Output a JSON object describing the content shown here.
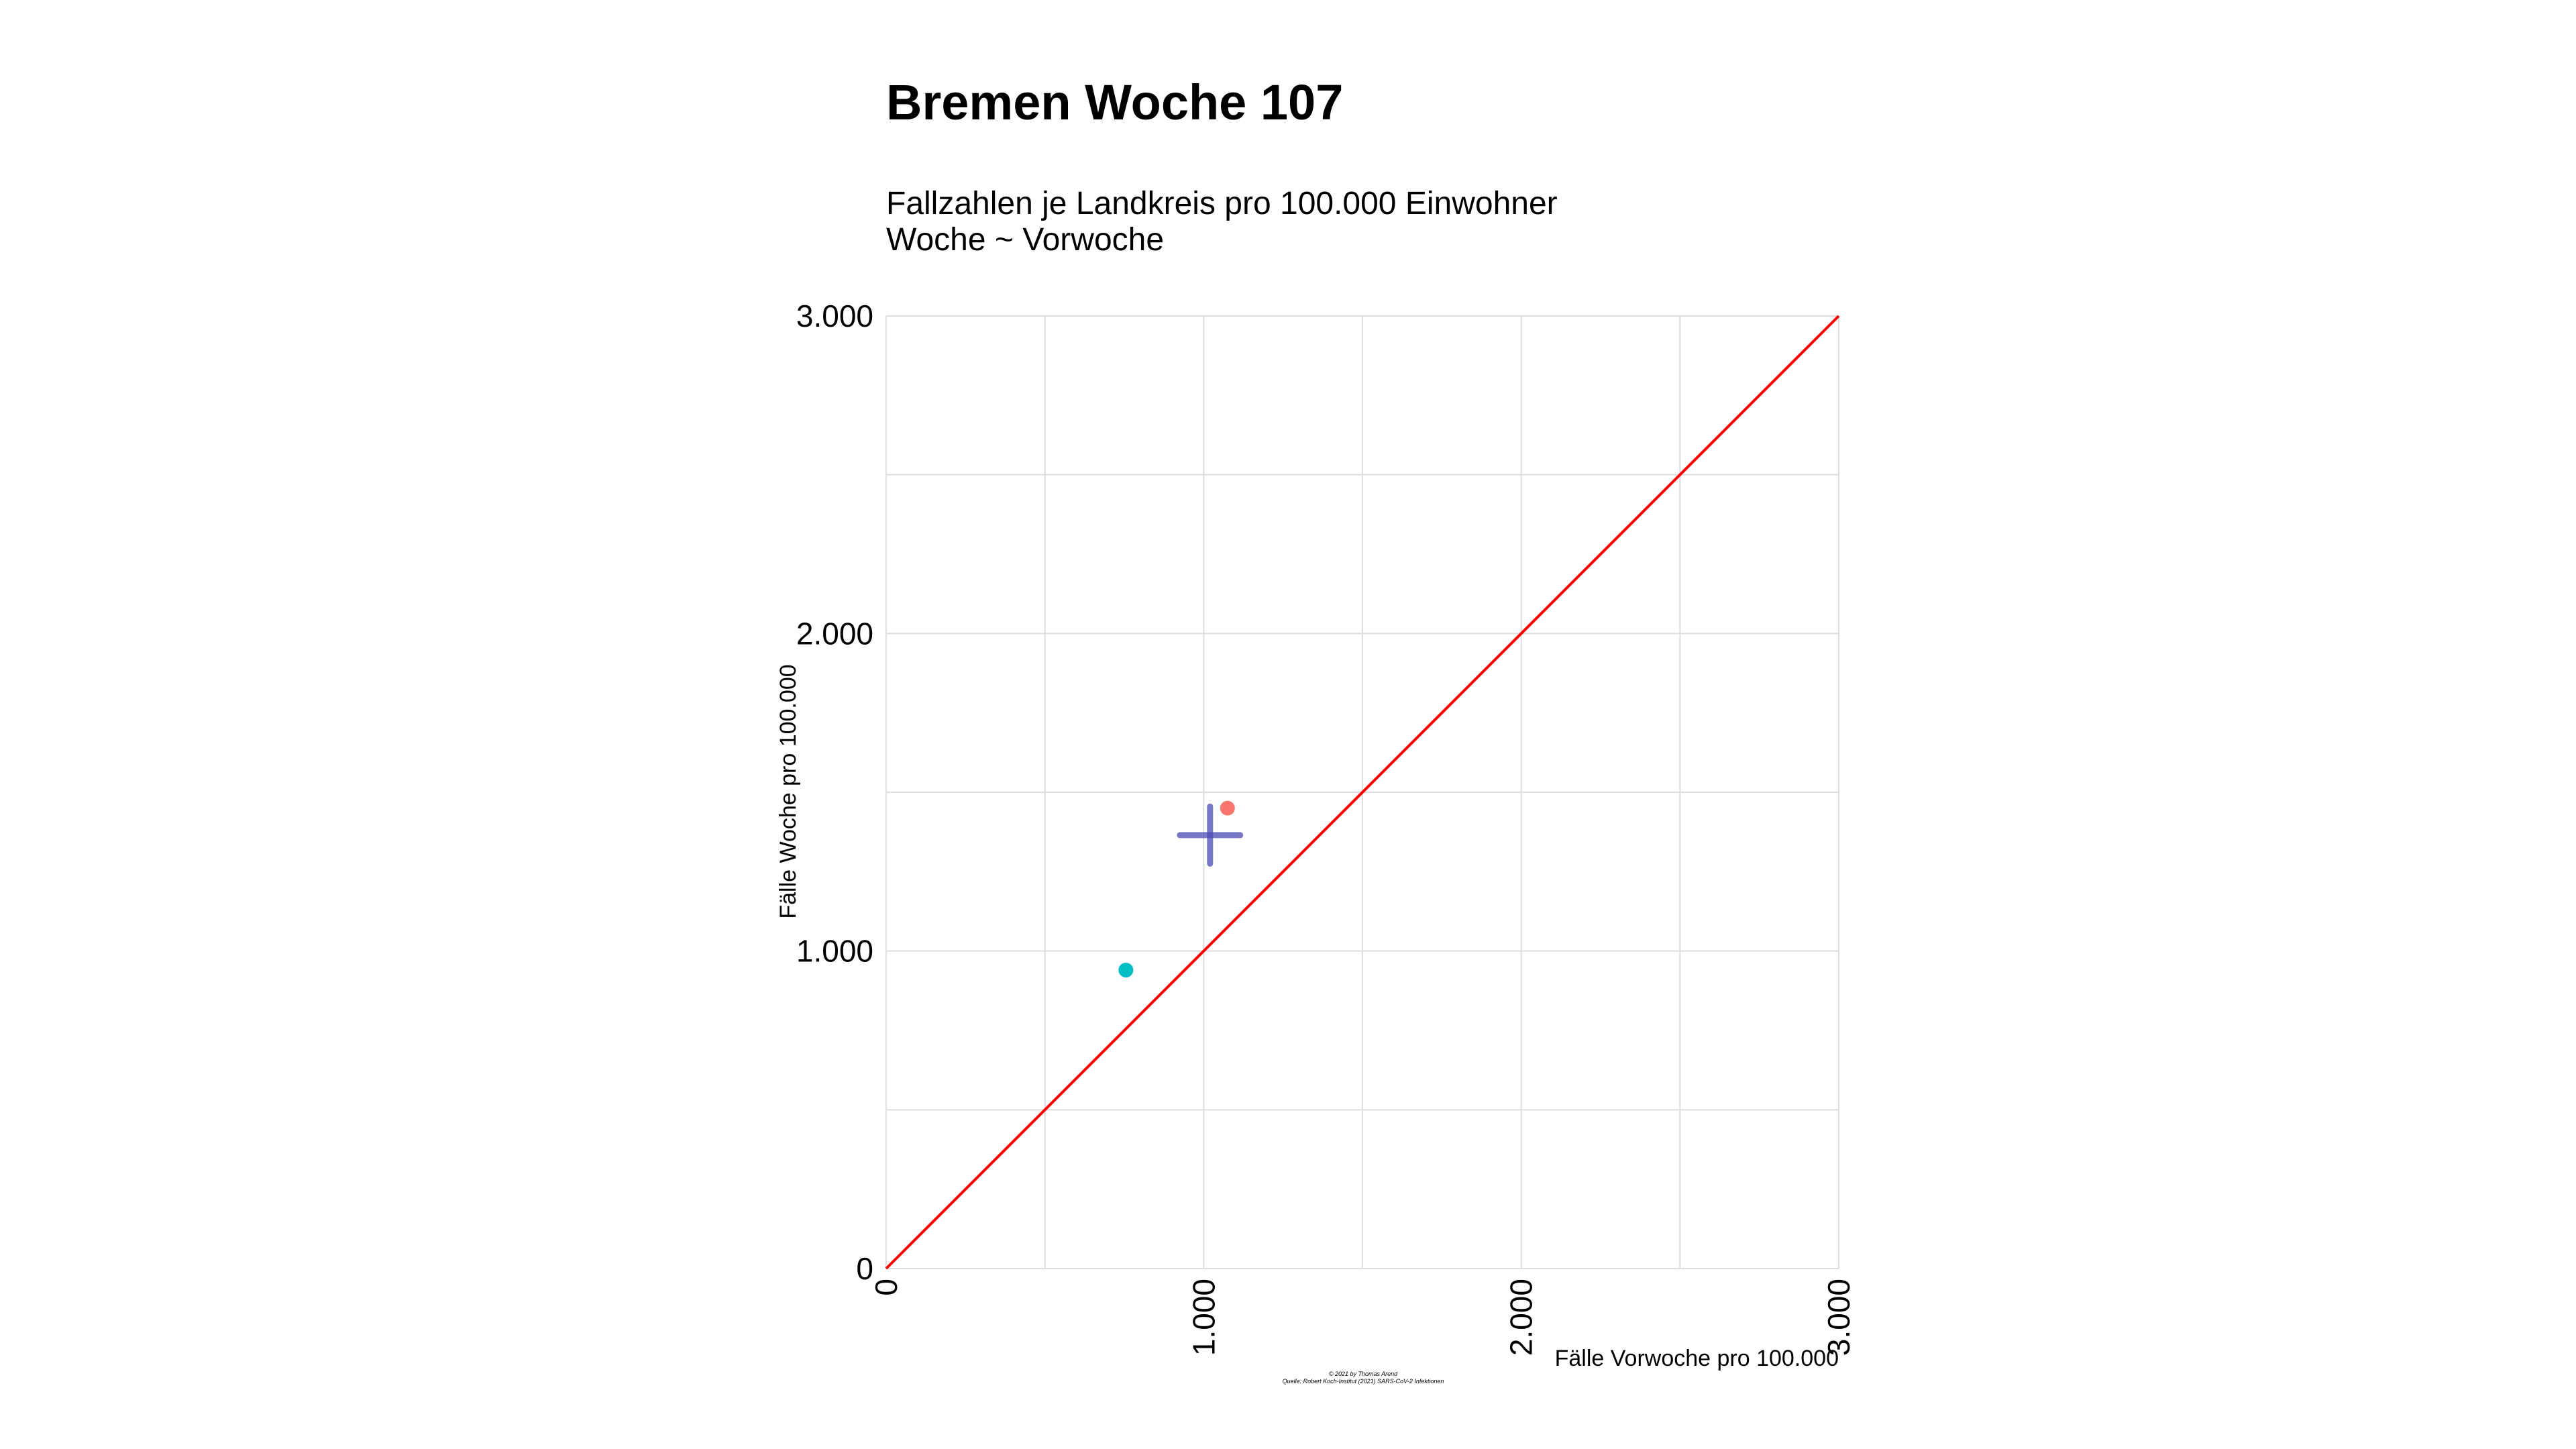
{
  "chart_data": {
    "type": "scatter",
    "title": "Bremen Woche 107",
    "subtitle_lines": [
      "Fallzahlen je Landkreis pro 100.000 Einwohner",
      "Woche ~ Vorwoche"
    ],
    "xlabel": "Fälle Vorwoche pro 100.000",
    "ylabel": "Fälle Woche pro 100.000",
    "xlim": [
      0,
      3000
    ],
    "ylim": [
      0,
      3000
    ],
    "x_ticks": [
      0,
      1000,
      2000,
      3000
    ],
    "y_ticks": [
      0,
      1000,
      2000,
      3000
    ],
    "x_tick_labels": [
      "0",
      "1.000",
      "2.000",
      "3.000"
    ],
    "y_tick_labels": [
      "0",
      "1.000",
      "2.000",
      "3.000"
    ],
    "grid": true,
    "reference_line": {
      "type": "identity",
      "color": "#ff0000"
    },
    "points": [
      {
        "x": 1075,
        "y": 1450,
        "color": "#f8766d"
      },
      {
        "x": 755,
        "y": 940,
        "color": "#00bfc4"
      }
    ],
    "crosshair": {
      "x": 1020,
      "y": 1365,
      "x_low": 925,
      "x_high": 1115,
      "y_low": 1275,
      "y_high": 1455,
      "color": "#4b4bb5"
    },
    "caption_lines": [
      "© 2021 by Thomas Arend",
      "Quelle: Robert Koch-Institut (2021) SARS-CoV-2 Infektionen"
    ]
  }
}
